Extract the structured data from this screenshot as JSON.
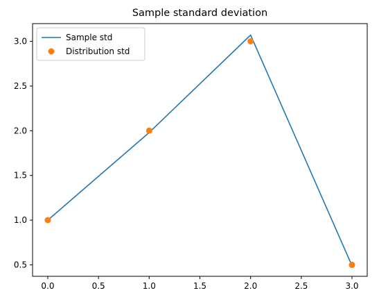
{
  "chart_data": {
    "type": "line",
    "title": "Sample standard deviation",
    "xlabel": "",
    "ylabel": "",
    "xlim": [
      -0.15,
      3.15
    ],
    "ylim": [
      0.372,
      3.198
    ],
    "xticks": [
      0.0,
      0.5,
      1.0,
      1.5,
      2.0,
      2.5,
      3.0
    ],
    "xtick_labels": [
      "0.0",
      "0.5",
      "1.0",
      "1.5",
      "2.0",
      "2.5",
      "3.0"
    ],
    "yticks": [
      0.5,
      1.0,
      1.5,
      2.0,
      2.5,
      3.0
    ],
    "ytick_labels": [
      "0.5",
      "1.0",
      "1.5",
      "2.0",
      "2.5",
      "3.0"
    ],
    "grid": false,
    "legend_position": "upper-left",
    "series": [
      {
        "name": "Sample std",
        "style": "line",
        "color": "#1f77b4",
        "x": [
          0,
          1,
          2,
          3
        ],
        "y": [
          1.0,
          1.98,
          3.07,
          0.49
        ]
      },
      {
        "name": "Distribution std",
        "style": "markers",
        "color": "#ff7f0e",
        "x": [
          0,
          1,
          2,
          3
        ],
        "y": [
          1.0,
          2.0,
          3.0,
          0.5
        ]
      }
    ]
  }
}
